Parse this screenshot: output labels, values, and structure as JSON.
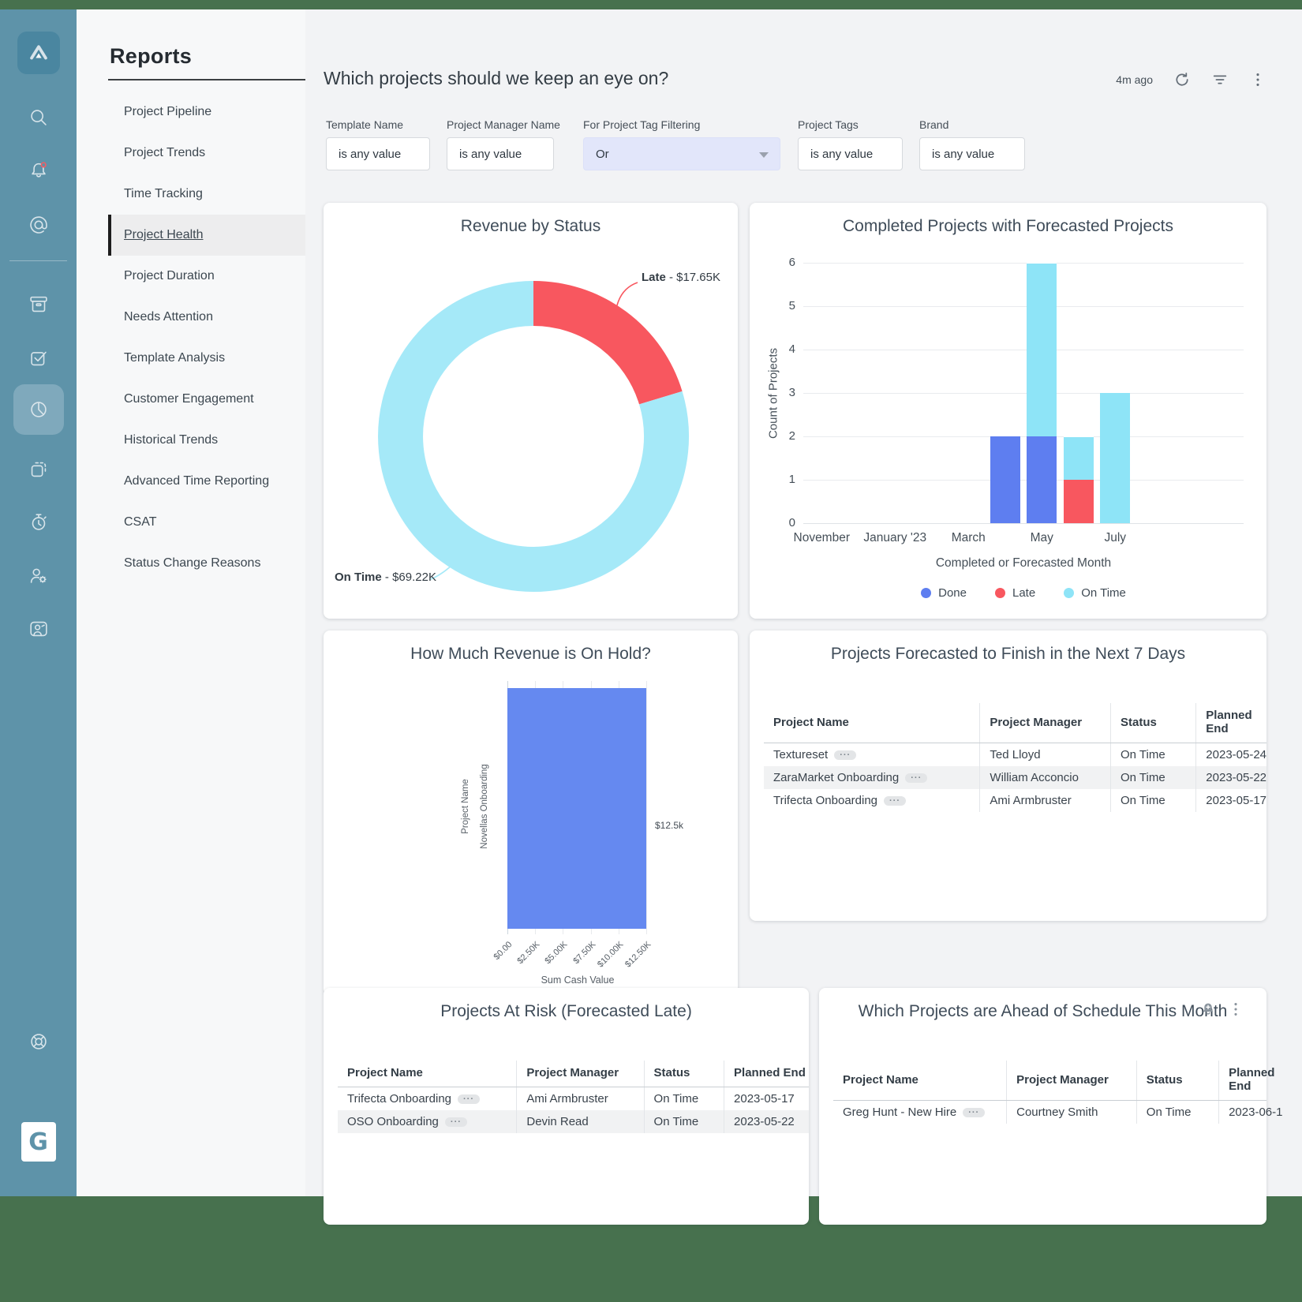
{
  "sidebar": {
    "icons": [
      {
        "id": "app-logo",
        "name": "app-logo"
      },
      {
        "id": "search",
        "name": "search-icon"
      },
      {
        "id": "notifications",
        "name": "notifications-bell-icon",
        "badge": true
      },
      {
        "id": "mentions",
        "name": "mentions-at-icon"
      },
      {
        "id": "archive",
        "name": "archive-box-icon"
      },
      {
        "id": "tasks",
        "name": "tasks-checkbox-icon"
      },
      {
        "id": "reports",
        "name": "reports-pie-chart-icon",
        "active": true
      },
      {
        "id": "templates",
        "name": "templates-copy-icon"
      },
      {
        "id": "time",
        "name": "time-stopwatch-icon"
      },
      {
        "id": "users",
        "name": "user-settings-icon"
      },
      {
        "id": "contacts",
        "name": "contact-card-icon"
      },
      {
        "id": "help",
        "name": "help-lifebuoy-icon"
      },
      {
        "id": "brand",
        "name": "guidecx-brand-logo",
        "letter": "G"
      }
    ]
  },
  "nav": {
    "title": "Reports",
    "items": [
      {
        "label": "Project Pipeline"
      },
      {
        "label": "Project Trends"
      },
      {
        "label": "Time Tracking"
      },
      {
        "label": "Project Health",
        "active": true
      },
      {
        "label": "Project Duration"
      },
      {
        "label": "Needs Attention"
      },
      {
        "label": "Template Analysis"
      },
      {
        "label": "Customer Engagement"
      },
      {
        "label": "Historical Trends"
      },
      {
        "label": "Advanced Time Reporting"
      },
      {
        "label": "CSAT"
      },
      {
        "label": "Status Change Reasons"
      }
    ]
  },
  "header": {
    "title": "Which projects should we keep an eye on?",
    "updated": "4m ago"
  },
  "filters": [
    {
      "label": "Template Name",
      "value": "is any value",
      "type": "box"
    },
    {
      "label": "Project Manager Name",
      "value": "is any value",
      "type": "box"
    },
    {
      "label": "For Project Tag Filtering",
      "value": "Or",
      "type": "dropdown"
    },
    {
      "label": "Project Tags",
      "value": "is any value",
      "type": "box"
    },
    {
      "label": "Brand",
      "value": "is any value",
      "type": "box"
    }
  ],
  "chart_data": [
    {
      "id": "revenue_by_status",
      "type": "pie",
      "title": "Revenue by Status",
      "segments": [
        {
          "label": "Late",
          "value": 17.65,
          "display": "Late - $17.65K",
          "color": "#f8575f"
        },
        {
          "label": "On Time",
          "value": 69.22,
          "display": "On Time - $69.22K",
          "color": "#a5e9f8"
        }
      ]
    },
    {
      "id": "completed_with_forecasted",
      "type": "bar",
      "title": "Completed Projects with Forecasted Projects",
      "xlabel": "Completed or Forecasted Month",
      "ylabel": "Count of Projects",
      "ylim": [
        0,
        6
      ],
      "yticks": [
        0,
        1,
        2,
        3,
        4,
        5,
        6
      ],
      "n_slots": 12,
      "x_ticks": [
        {
          "slot": 0,
          "label": "November"
        },
        {
          "slot": 2,
          "label": "January '23"
        },
        {
          "slot": 4,
          "label": "March"
        },
        {
          "slot": 6,
          "label": "May"
        },
        {
          "slot": 8,
          "label": "July"
        }
      ],
      "series": [
        {
          "name": "Done",
          "color": "#5e7ef0",
          "bars": [
            {
              "slot": 5,
              "value": 2
            },
            {
              "slot": 6,
              "value": 2
            }
          ]
        },
        {
          "name": "Late",
          "color": "#f8575f",
          "bars": [
            {
              "slot": 7,
              "value": 1
            }
          ]
        },
        {
          "name": "On Time",
          "color": "#8ee4f7",
          "bars": [
            {
              "slot": 6,
              "value": 4
            },
            {
              "slot": 7,
              "value": 1
            },
            {
              "slot": 8,
              "value": 3
            }
          ]
        }
      ],
      "legend": [
        "Done",
        "Late",
        "On Time"
      ]
    },
    {
      "id": "revenue_on_hold",
      "type": "bar",
      "orientation": "horizontal",
      "title": "How Much Revenue is On Hold?",
      "ylabel": "Project Name",
      "xlabel": "Sum Cash Value",
      "category": "Novellas Onboarding",
      "value": 12500,
      "value_display": "$12.5k",
      "x_ticks": [
        "$0.00",
        "$2.50K",
        "$5.00K",
        "$7.50K",
        "$10.00K",
        "$12.50K"
      ],
      "bar_color": "#6589f0"
    }
  ],
  "tables": [
    {
      "id": "forecast_finish",
      "title": "Projects Forecasted to Finish in the Next 7 Days",
      "headers": [
        "Project Name",
        "Project Manager",
        "Status",
        "Planned End"
      ],
      "rows": [
        [
          "Textureset",
          "Ted Lloyd",
          "On Time",
          "2023-05-24"
        ],
        [
          "ZaraMarket Onboarding",
          "William Acconcio",
          "On Time",
          "2023-05-22"
        ],
        [
          "Trifecta Onboarding",
          "Ami Armbruster",
          "On Time",
          "2023-05-17"
        ]
      ]
    },
    {
      "id": "at_risk",
      "title": "Projects At Risk (Forecasted Late)",
      "headers": [
        "Project Name",
        "Project Manager",
        "Status",
        "Planned End"
      ],
      "rows": [
        [
          "Trifecta Onboarding",
          "Ami Armbruster",
          "On Time",
          "2023-05-17"
        ],
        [
          "OSO Onboarding",
          "Devin Read",
          "On Time",
          "2023-05-22"
        ]
      ]
    },
    {
      "id": "ahead_of_schedule",
      "title": "Which Projects are Ahead of Schedule This Month",
      "headers": [
        "Project Name",
        "Project Manager",
        "Status",
        "Planned End"
      ],
      "rows": [
        [
          "Greg Hunt - New Hire",
          "Courtney Smith",
          "On Time",
          "2023-06-1"
        ]
      ]
    }
  ]
}
